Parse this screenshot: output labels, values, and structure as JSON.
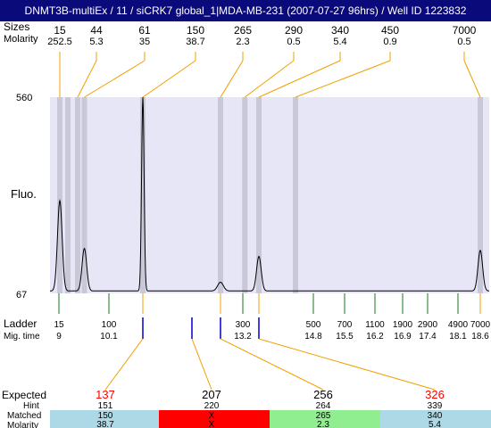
{
  "window_title": "DNMT3B-multiEx / 11  / siCRK7 global_1|MDA-MB-231 (2007-07-27 96hrs) / Well ID 1223832",
  "header": {
    "sizes_label": "Sizes",
    "molarity_label": "Molarity"
  },
  "axis": {
    "y_max_label": "560",
    "y_min_label": "67",
    "y_label": "Fluo."
  },
  "ladder": {
    "label": "Ladder",
    "migtime_label": "Mig. time"
  },
  "expected_block": {
    "expected_label": "Expected",
    "hint_label": "Hint",
    "matched_label": "Matched",
    "molarity_label": "Molarity"
  },
  "colors": {
    "title_bg": "#0a0a7a",
    "plot_bg": "#e6e6f6",
    "band": "#c8c8d8",
    "orange": "#f0a000",
    "green": "#1a7a1a",
    "blue": "#0000cc",
    "red": "#ff0000",
    "light_blue": "#add8e6",
    "light_green": "#90ee90"
  },
  "chart_data": {
    "type": "line",
    "ylim": [
      67,
      560
    ],
    "xlim": [
      8.7,
      19.0
    ],
    "peaks": [
      {
        "size": "15",
        "molarity": "252.5",
        "mig_time": 9.0,
        "height": 300
      },
      {
        "size": "44",
        "molarity": "5.3",
        "mig_time": 9.4,
        "height": 20
      },
      {
        "size": "61",
        "molarity": "35",
        "mig_time": 9.55,
        "height": 180
      },
      {
        "size": "150",
        "molarity": "38.7",
        "mig_time": 10.6,
        "height": 560
      },
      {
        "size": "265",
        "molarity": "2.3",
        "mig_time": 13.0,
        "height": 95
      },
      {
        "size": "290",
        "molarity": "0.5",
        "mig_time": 13.25,
        "height": 12
      },
      {
        "size": "340",
        "molarity": "5.4",
        "mig_time": 13.6,
        "height": 160
      },
      {
        "size": "450",
        "molarity": "0.9",
        "mig_time": 14.3,
        "height": 30
      },
      {
        "size": "7000",
        "molarity": "0.5",
        "mig_time": 18.6,
        "height": 175
      }
    ],
    "minor_bumps": [
      {
        "mig_time": 12.2,
        "height": 20
      },
      {
        "mig_time": 13.9,
        "height": 12
      }
    ],
    "ladder": [
      {
        "size": "15",
        "mig_time": "9"
      },
      {
        "size": "100",
        "mig_time": "10.1"
      },
      {
        "size": "300",
        "mig_time": "13.2"
      },
      {
        "size": "500",
        "mig_time": "14.8"
      },
      {
        "size": "700",
        "mig_time": "15.5"
      },
      {
        "size": "1100",
        "mig_time": "16.2"
      },
      {
        "size": "1900",
        "mig_time": "16.9"
      },
      {
        "size": "2900",
        "mig_time": "17.4"
      },
      {
        "size": "4900",
        "mig_time": "18.1"
      },
      {
        "size": "7000",
        "mig_time": "18.6"
      }
    ],
    "expected": [
      {
        "size": "137",
        "hint": "151",
        "matched": "150",
        "molarity": "38.7",
        "status": "match",
        "expected_color": "#ff0000",
        "bar_color": "#add8e6",
        "marker_mig_time": 10.6
      },
      {
        "size": "207",
        "hint": "220",
        "matched": "X",
        "molarity": "X",
        "status": "missing",
        "expected_color": "#000000",
        "bar_color": "#ff0000",
        "marker_mig_time": 11.7
      },
      {
        "size": "256",
        "hint": "264",
        "matched": "265",
        "molarity": "2.3",
        "status": "match",
        "expected_color": "#000000",
        "bar_color": "#90ee90",
        "marker_mig_time": 13.0
      },
      {
        "size": "326",
        "hint": "339",
        "matched": "340",
        "molarity": "5.4",
        "status": "match",
        "expected_color": "#ff0000",
        "bar_color": "#add8e6",
        "marker_mig_time": 13.6
      }
    ]
  }
}
